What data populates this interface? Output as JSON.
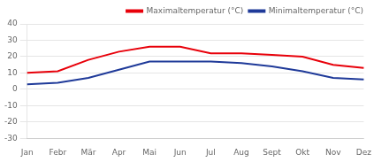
{
  "chart_data": {
    "type": "line",
    "categories": [
      "Jan",
      "Febr",
      "Mär",
      "Apr",
      "Mai",
      "Jun",
      "Jul",
      "Aug",
      "Sept",
      "Okt",
      "Nov",
      "Dez"
    ],
    "series": [
      {
        "name": "Maximaltemperatur (°C)",
        "color": "#e8000a",
        "values": [
          10,
          11,
          18,
          23,
          26,
          26,
          22,
          22,
          21,
          20,
          15,
          13
        ]
      },
      {
        "name": "Minimaltemperatur (°C)",
        "color": "#1f3a99",
        "values": [
          3,
          4,
          7,
          12,
          17,
          17,
          17,
          16,
          14,
          11,
          7,
          6
        ]
      }
    ],
    "ylim": [
      -30,
      40
    ],
    "yticks": [
      -30,
      -20,
      -10,
      0,
      10,
      20,
      30,
      40
    ],
    "grid": true,
    "legend": "upper right"
  }
}
